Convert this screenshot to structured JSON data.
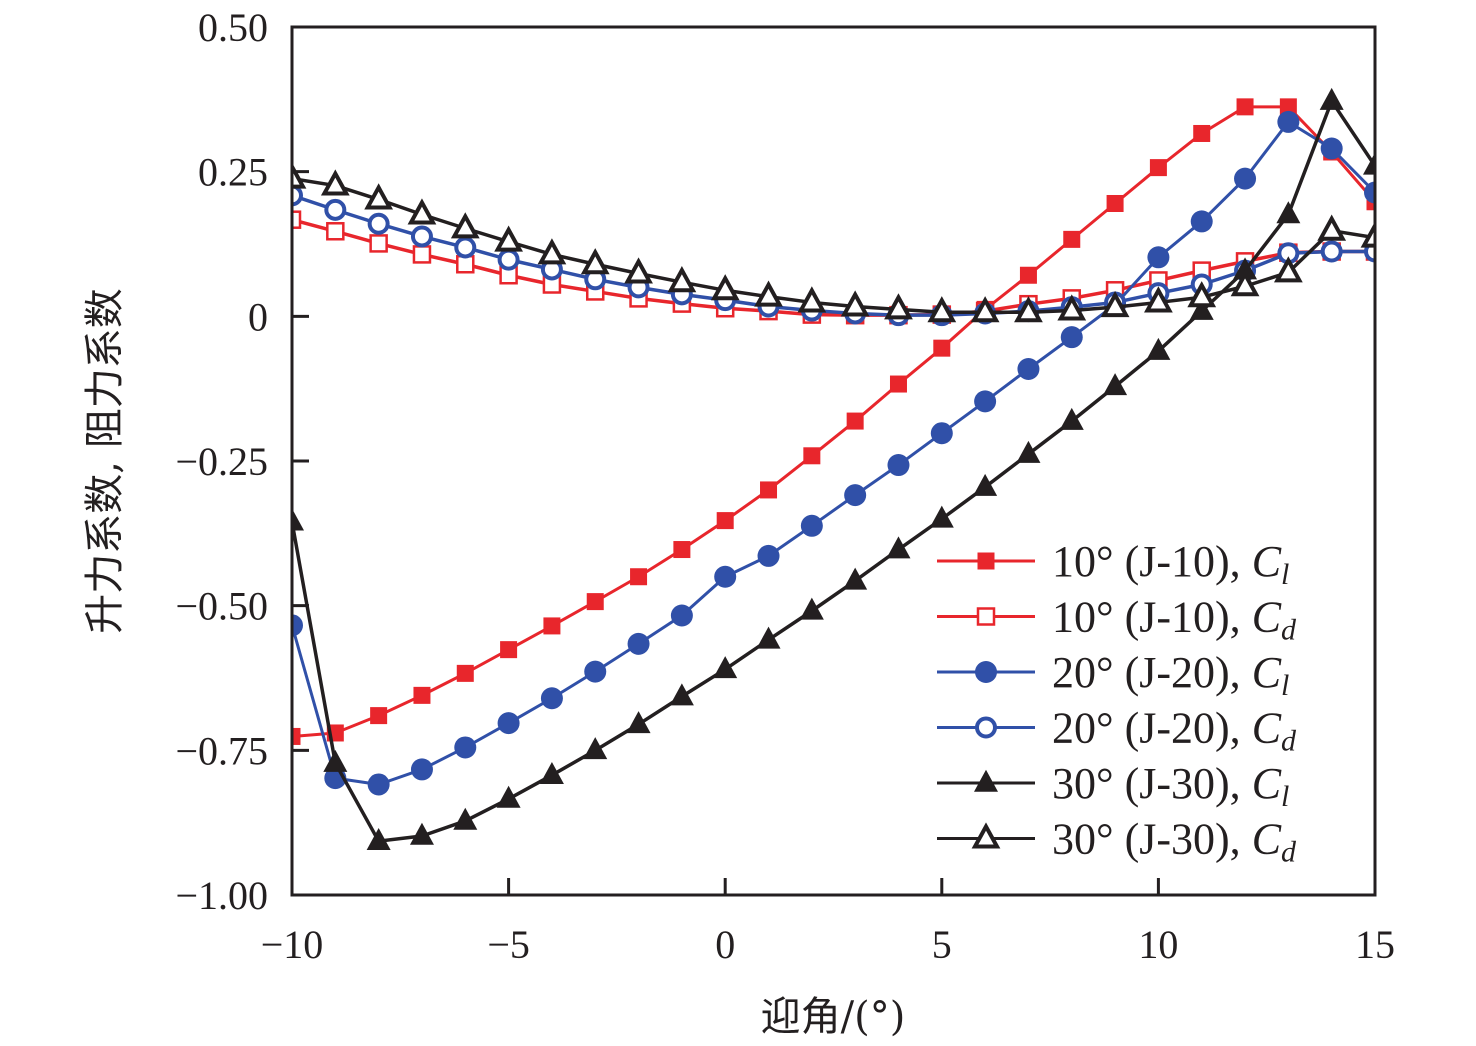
{
  "chart_data": {
    "type": "line",
    "title": "",
    "xlabel": "迎角/(°)",
    "ylabel": "升力系数, 阻力系数",
    "xlim": [
      -10,
      15
    ],
    "ylim": [
      -1.0,
      0.5
    ],
    "xticks": [
      -10,
      -5,
      0,
      5,
      10,
      15
    ],
    "xtick_labels": [
      "−10",
      "−5",
      "0",
      "5",
      "10",
      "15"
    ],
    "yticks": [
      0.5,
      0.25,
      0,
      -0.25,
      -0.5,
      -0.75,
      -1.0
    ],
    "ytick_labels": [
      "0.50",
      "0.25",
      "0",
      "−0.25",
      "−0.50",
      "−0.75",
      "−1.00"
    ],
    "grid": false,
    "legend_position": "bottom-right",
    "x": [
      -10,
      -9,
      -8,
      -7,
      -6,
      -5,
      -4,
      -3,
      -2,
      -1,
      0,
      1,
      2,
      3,
      4,
      5,
      6,
      7,
      8,
      9,
      10,
      11,
      12,
      13,
      14,
      15
    ],
    "series": [
      {
        "name": "10° (J-10), Cl",
        "label_main": "10° (J-10), ",
        "label_sym": "C",
        "label_sub": "l",
        "color": "#e8262c",
        "marker": "square",
        "filled": true,
        "values": [
          -0.726,
          -0.72,
          -0.69,
          -0.655,
          -0.617,
          -0.576,
          -0.535,
          -0.493,
          -0.45,
          -0.403,
          -0.353,
          -0.3,
          -0.241,
          -0.181,
          -0.117,
          -0.055,
          0.012,
          0.071,
          0.133,
          0.195,
          0.257,
          0.316,
          0.362,
          0.362,
          0.284,
          0.198
        ]
      },
      {
        "name": "10° (J-10), Cd",
        "label_main": "10° (J-10), ",
        "label_sym": "C",
        "label_sub": "d",
        "color": "#e8262c",
        "marker": "square",
        "filled": false,
        "values": [
          0.167,
          0.147,
          0.126,
          0.107,
          0.09,
          0.071,
          0.055,
          0.043,
          0.031,
          0.022,
          0.014,
          0.009,
          0.003,
          0.002,
          0.002,
          0.003,
          0.009,
          0.021,
          0.031,
          0.045,
          0.062,
          0.079,
          0.095,
          0.11,
          0.112,
          0.112
        ]
      },
      {
        "name": "20° (J-20), Cl",
        "label_main": "20° (J-20), ",
        "label_sym": "C",
        "label_sub": "l",
        "color": "#3050a8",
        "marker": "circle",
        "filled": true,
        "values": [
          -0.534,
          -0.798,
          -0.809,
          -0.783,
          -0.745,
          -0.703,
          -0.66,
          -0.614,
          -0.566,
          -0.517,
          -0.45,
          -0.414,
          -0.362,
          -0.309,
          -0.257,
          -0.202,
          -0.147,
          -0.091,
          -0.036,
          0.02,
          0.102,
          0.164,
          0.238,
          0.336,
          0.29,
          0.214
        ]
      },
      {
        "name": "20° (J-20), Cd",
        "label_main": "20° (J-20), ",
        "label_sym": "C",
        "label_sub": "d",
        "color": "#3050a8",
        "marker": "circle",
        "filled": false,
        "values": [
          0.209,
          0.184,
          0.16,
          0.138,
          0.119,
          0.098,
          0.081,
          0.064,
          0.05,
          0.038,
          0.028,
          0.017,
          0.01,
          0.005,
          0.002,
          0.002,
          0.005,
          0.009,
          0.016,
          0.024,
          0.04,
          0.055,
          0.079,
          0.109,
          0.112,
          0.112
        ]
      },
      {
        "name": "30° (J-30), Cl",
        "label_main": "30° (J-30), ",
        "label_sym": "C",
        "label_sub": "l",
        "color": "#231f20",
        "marker": "triangle",
        "filled": true,
        "values": [
          -0.355,
          -0.772,
          -0.907,
          -0.898,
          -0.872,
          -0.834,
          -0.793,
          -0.75,
          -0.705,
          -0.657,
          -0.61,
          -0.559,
          -0.509,
          -0.457,
          -0.403,
          -0.35,
          -0.295,
          -0.238,
          -0.181,
          -0.121,
          -0.06,
          0.009,
          0.079,
          0.176,
          0.372,
          0.26
        ]
      },
      {
        "name": "30° (J-30), Cd",
        "label_main": "30° (J-30), ",
        "label_sym": "C",
        "label_sub": "d",
        "color": "#231f20",
        "marker": "triangle",
        "filled": false,
        "values": [
          0.238,
          0.226,
          0.202,
          0.176,
          0.152,
          0.129,
          0.107,
          0.09,
          0.074,
          0.059,
          0.045,
          0.034,
          0.024,
          0.017,
          0.012,
          0.007,
          0.007,
          0.007,
          0.01,
          0.016,
          0.024,
          0.033,
          0.052,
          0.076,
          0.148,
          0.136
        ]
      }
    ]
  }
}
